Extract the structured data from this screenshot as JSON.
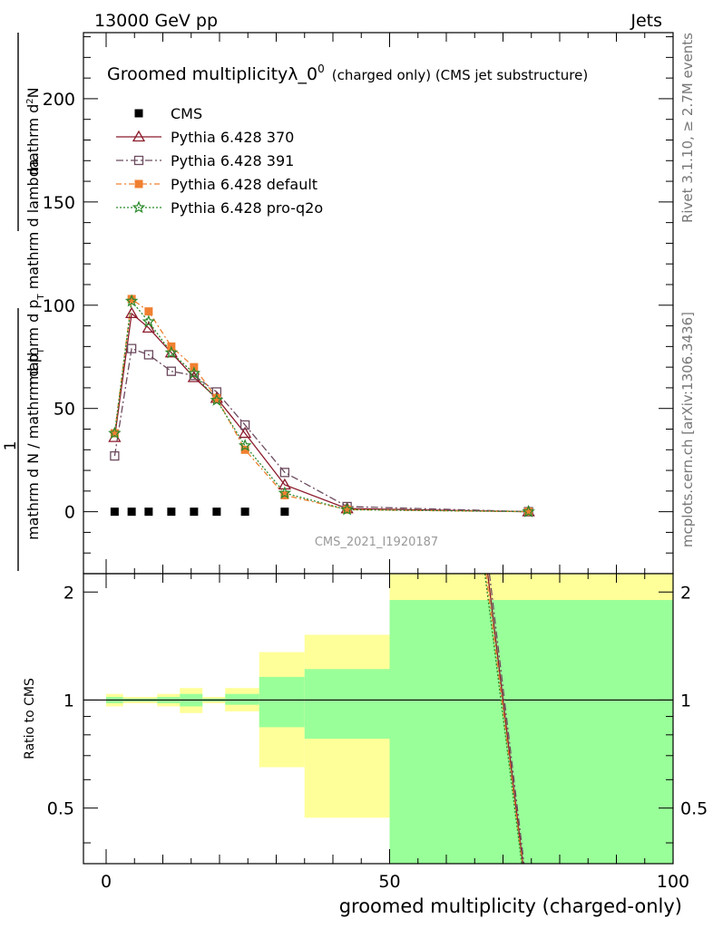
{
  "header": {
    "left": "13000 GeV pp",
    "right": "Jets"
  },
  "side_labels": {
    "rivet": "Rivet 3.1.10, ≥ 2.7M events",
    "mcplots": "mcplots.cern.ch [arXiv:1306.3436]"
  },
  "chart_data": [
    {
      "type": "line",
      "panel": "main",
      "title_main": "Groomed multiplicityλ_0",
      "title_sup": "0",
      "title_suffix": "(charged only) (CMS jet substructure)",
      "ylabel_numerator": "mathrm d²N",
      "ylabel_numerator_parts": [
        "mathrm d",
        "2",
        "N"
      ],
      "ylabel_denominator": "mathrm d p_T mathrm d lambda",
      "ylabel_denominator_parts": [
        "mathrm d p",
        "T",
        " mathrm d lambda"
      ],
      "ylabel_prefix_num": "1",
      "ylabel_prefix_den": "mathrm d N / mathrm d p",
      "ylabel_prefix_den_parts": [
        "mathrm d N / mathrm d p",
        "T"
      ],
      "xlim": [
        -4,
        100
      ],
      "ylim": [
        -30,
        232
      ],
      "yticks": [
        0,
        50,
        100,
        150,
        200
      ],
      "watermark": "CMS_2021_I1920187",
      "legend_position": "top-left",
      "series": [
        {
          "name": "CMS",
          "color": "#000000",
          "marker": "square-filled",
          "dash": "",
          "x": [
            1.5,
            4.5,
            7.5,
            11.5,
            15.5,
            19.5,
            24.5,
            31.5
          ],
          "y": [
            0,
            0,
            0,
            0,
            0,
            0,
            0,
            0
          ]
        },
        {
          "name": "Pythia 6.428 370",
          "color": "#8b1a2b",
          "marker": "triangle-open",
          "dash": "",
          "x": [
            1.5,
            4.5,
            7.5,
            11.5,
            15.5,
            19.5,
            24.5,
            31.5,
            42.5,
            74.5
          ],
          "y": [
            36,
            96,
            89,
            77,
            65,
            55,
            38,
            13,
            1.5,
            0
          ]
        },
        {
          "name": "Pythia 6.428 391",
          "color": "#6b4a5e",
          "marker": "square-open",
          "dash": "8,3,2,3",
          "x": [
            1.5,
            4.5,
            7.5,
            11.5,
            15.5,
            19.5,
            24.5,
            31.5,
            42.5,
            74.5
          ],
          "y": [
            27,
            79,
            76,
            68,
            66,
            58,
            42,
            19,
            2.5,
            0
          ]
        },
        {
          "name": "Pythia 6.428 default",
          "color": "#f08030",
          "marker": "square-filled",
          "dash": "6,3,2,3",
          "x": [
            1.5,
            4.5,
            7.5,
            11.5,
            15.5,
            19.5,
            24.5,
            31.5,
            42.5,
            74.5
          ],
          "y": [
            38,
            103,
            97,
            80,
            70,
            55,
            30,
            8,
            1,
            0
          ]
        },
        {
          "name": "Pythia 6.428 pro-q2o",
          "color": "#2a8a2a",
          "marker": "star",
          "dash": "2,2",
          "x": [
            1.5,
            4.5,
            7.5,
            11.5,
            15.5,
            19.5,
            24.5,
            31.5,
            42.5,
            74.5
          ],
          "y": [
            38,
            102,
            92,
            77,
            67,
            54,
            32,
            9,
            1,
            0
          ]
        }
      ]
    },
    {
      "type": "area",
      "panel": "ratio",
      "ylabel": "Ratio to CMS",
      "xlabel": "groomed multiplicity (charged-only)",
      "xlim": [
        -4,
        100
      ],
      "ylim": [
        0.35,
        2.25
      ],
      "yticks": [
        0.5,
        1,
        2
      ],
      "ytick_labels": [
        "0.5",
        "1",
        "2"
      ],
      "xticks": [
        0,
        50,
        100
      ],
      "xtick_labels": [
        "0",
        "50",
        "100"
      ],
      "bins": [
        {
          "lo": 0,
          "hi": 3,
          "green": [
            0.98,
            1.02
          ],
          "yellow": [
            0.96,
            1.04
          ]
        },
        {
          "lo": 3,
          "hi": 6,
          "green": [
            0.99,
            1.01
          ],
          "yellow": [
            0.98,
            1.02
          ]
        },
        {
          "lo": 6,
          "hi": 9,
          "green": [
            0.99,
            1.01
          ],
          "yellow": [
            0.98,
            1.02
          ]
        },
        {
          "lo": 9,
          "hi": 13,
          "green": [
            0.98,
            1.02
          ],
          "yellow": [
            0.96,
            1.04
          ]
        },
        {
          "lo": 13,
          "hi": 17,
          "green": [
            0.96,
            1.04
          ],
          "yellow": [
            0.92,
            1.08
          ]
        },
        {
          "lo": 17,
          "hi": 21,
          "green": [
            0.99,
            1.01
          ],
          "yellow": [
            0.98,
            1.02
          ]
        },
        {
          "lo": 21,
          "hi": 27,
          "green": [
            0.97,
            1.04
          ],
          "yellow": [
            0.93,
            1.08
          ]
        },
        {
          "lo": 27,
          "hi": 35,
          "green": [
            0.84,
            1.16
          ],
          "yellow": [
            0.65,
            1.36
          ]
        },
        {
          "lo": 35,
          "hi": 50,
          "green": [
            0.78,
            1.22
          ],
          "yellow": [
            0.47,
            1.52
          ]
        },
        {
          "lo": 50,
          "hi": 100,
          "green": [
            0.35,
            1.9
          ],
          "yellow": [
            0.35,
            2.25
          ]
        }
      ],
      "ratio_lines": [
        {
          "color": "#8b1a2b",
          "dash": "",
          "x": [
            67.3,
            73.5
          ],
          "y": [
            2.25,
            0.35
          ]
        },
        {
          "color": "#6b4a5e",
          "dash": "8,3,2,3",
          "x": [
            67.6,
            73.7
          ],
          "y": [
            2.25,
            0.35
          ]
        },
        {
          "color": "#f08030",
          "dash": "6,3,2,3",
          "x": [
            67.0,
            73.4
          ],
          "y": [
            2.25,
            0.35
          ]
        },
        {
          "color": "#2a8a2a",
          "dash": "2,2",
          "x": [
            66.8,
            73.3
          ],
          "y": [
            2.25,
            0.35
          ]
        }
      ]
    }
  ]
}
